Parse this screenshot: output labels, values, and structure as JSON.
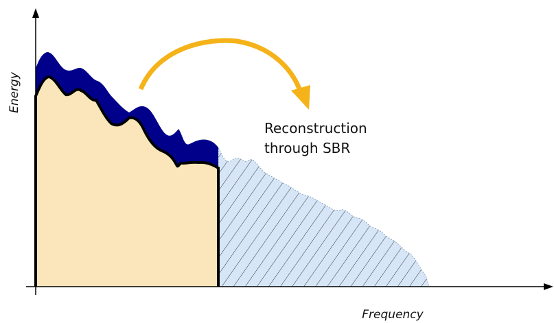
{
  "axes": {
    "y_label": "Energy",
    "x_label": "Frequency"
  },
  "annotation": {
    "lines": [
      "Reconstruction",
      "through SBR"
    ]
  }
}
